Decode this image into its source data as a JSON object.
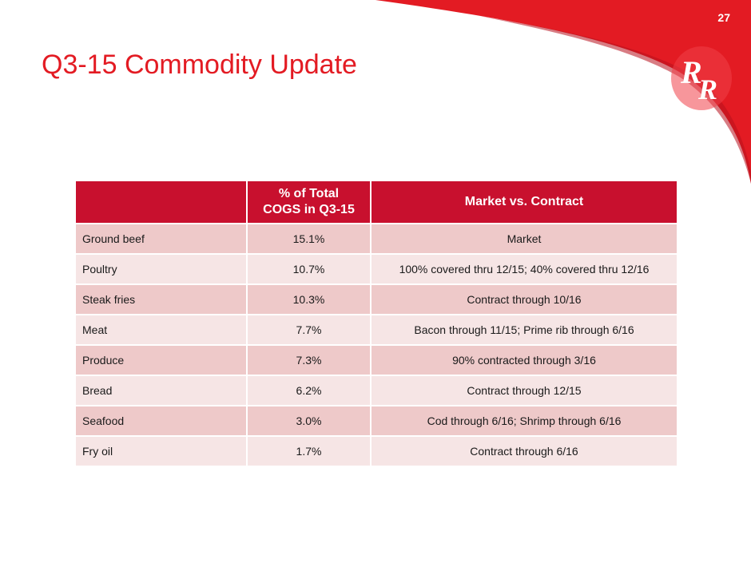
{
  "slide": {
    "page_number": "27",
    "title": "Q3-15 Commodity Update",
    "brand_color": "#e31b23",
    "header_color": "#c8102e",
    "logo_text": "RR"
  },
  "table": {
    "headers": [
      "",
      "% of Total COGS in Q3-15",
      "Market vs. Contract"
    ],
    "header_pct_lines": [
      "% of Total",
      "COGS in Q3-15"
    ],
    "rows": [
      {
        "item": "Ground beef",
        "pct": "15.1%",
        "status": "Market"
      },
      {
        "item": "Poultry",
        "pct": "10.7%",
        "status": "100% covered thru 12/15; 40% covered thru 12/16"
      },
      {
        "item": "Steak fries",
        "pct": "10.3%",
        "status": "Contract through 10/16"
      },
      {
        "item": "Meat",
        "pct": "7.7%",
        "status": "Bacon through 11/15; Prime rib through 6/16"
      },
      {
        "item": "Produce",
        "pct": "7.3%",
        "status": "90% contracted through 3/16"
      },
      {
        "item": "Bread",
        "pct": "6.2%",
        "status": "Contract through 12/15"
      },
      {
        "item": "Seafood",
        "pct": "3.0%",
        "status": "Cod through 6/16; Shrimp through 6/16"
      },
      {
        "item": "Fry oil",
        "pct": "1.7%",
        "status": "Contract through 6/16"
      }
    ]
  }
}
